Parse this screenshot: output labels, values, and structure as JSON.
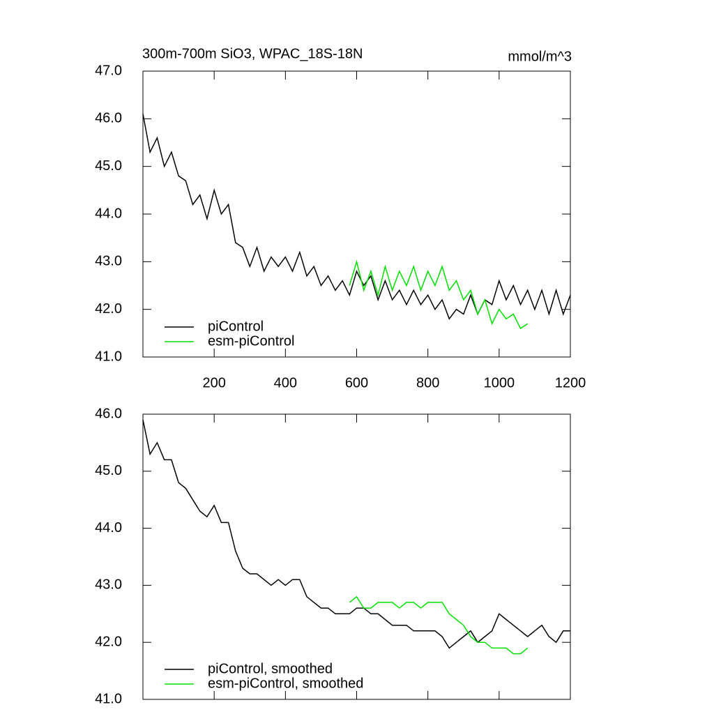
{
  "chart_data": [
    {
      "type": "line",
      "title": "300m-700m SiO3, WPAC_18S-18N",
      "units": "mmol/m^3",
      "xlim": [
        0,
        1200
      ],
      "xticks": [
        200,
        400,
        600,
        800,
        1000,
        1200
      ],
      "ylim": [
        41,
        47
      ],
      "yticks": [
        {
          "value": 41,
          "label": "41.0"
        },
        {
          "value": 42,
          "label": "42.0"
        },
        {
          "value": 43,
          "label": "43.0"
        },
        {
          "value": 44,
          "label": "44.0"
        },
        {
          "value": 45,
          "label": "45.0"
        },
        {
          "value": 46,
          "label": "46.0"
        },
        {
          "value": 47,
          "label": "47.0"
        }
      ],
      "legend": "lower left",
      "series": [
        {
          "name": "piControl",
          "color": "#000000",
          "x": [
            0,
            20,
            40,
            60,
            80,
            100,
            120,
            140,
            160,
            180,
            200,
            220,
            240,
            260,
            280,
            300,
            320,
            340,
            360,
            380,
            400,
            420,
            440,
            460,
            480,
            500,
            520,
            540,
            560,
            580,
            600,
            620,
            640,
            660,
            680,
            700,
            720,
            740,
            760,
            780,
            800,
            820,
            840,
            860,
            880,
            900,
            920,
            940,
            960,
            980,
            1000,
            1020,
            1040,
            1060,
            1080,
            1100,
            1120,
            1140,
            1160,
            1180,
            1200
          ],
          "values": [
            46.1,
            45.3,
            45.6,
            45.0,
            45.3,
            44.8,
            44.7,
            44.2,
            44.4,
            43.9,
            44.5,
            44.0,
            44.2,
            43.4,
            43.3,
            42.9,
            43.3,
            42.8,
            43.1,
            42.9,
            43.1,
            42.8,
            43.2,
            42.7,
            42.9,
            42.5,
            42.7,
            42.4,
            42.6,
            42.3,
            42.8,
            42.5,
            42.7,
            42.2,
            42.6,
            42.2,
            42.4,
            42.1,
            42.4,
            42.1,
            42.3,
            42.0,
            42.2,
            41.8,
            42.0,
            41.9,
            42.3,
            41.9,
            42.2,
            42.1,
            42.6,
            42.2,
            42.5,
            42.1,
            42.4,
            42.0,
            42.4,
            41.9,
            42.4,
            41.9,
            42.3
          ]
        },
        {
          "name": "esm-piControl",
          "color": "#00e000",
          "x": [
            580,
            600,
            620,
            640,
            660,
            680,
            700,
            720,
            740,
            760,
            780,
            800,
            820,
            840,
            860,
            880,
            900,
            920,
            940,
            960,
            980,
            1000,
            1020,
            1040,
            1060,
            1080
          ],
          "values": [
            42.5,
            43.0,
            42.4,
            42.8,
            42.3,
            42.9,
            42.4,
            42.8,
            42.5,
            42.9,
            42.4,
            42.8,
            42.5,
            42.9,
            42.4,
            42.6,
            42.2,
            42.4,
            41.9,
            42.2,
            41.7,
            42.0,
            41.8,
            41.9,
            41.6,
            41.7
          ]
        }
      ]
    },
    {
      "type": "line",
      "xlim": [
        0,
        1200
      ],
      "xticks": [
        200,
        400,
        600,
        800,
        1000,
        1200
      ],
      "ylim": [
        41,
        46
      ],
      "yticks": [
        {
          "value": 41,
          "label": "41.0"
        },
        {
          "value": 42,
          "label": "42.0"
        },
        {
          "value": 43,
          "label": "43.0"
        },
        {
          "value": 44,
          "label": "44.0"
        },
        {
          "value": 45,
          "label": "45.0"
        },
        {
          "value": 46,
          "label": "46.0"
        }
      ],
      "legend": "lower left",
      "series": [
        {
          "name": "piControl, smoothed",
          "color": "#000000",
          "x": [
            0,
            20,
            40,
            60,
            80,
            100,
            120,
            140,
            160,
            180,
            200,
            220,
            240,
            260,
            280,
            300,
            320,
            340,
            360,
            380,
            400,
            420,
            440,
            460,
            480,
            500,
            520,
            540,
            560,
            580,
            600,
            620,
            640,
            660,
            680,
            700,
            720,
            740,
            760,
            780,
            800,
            820,
            840,
            860,
            880,
            900,
            920,
            940,
            960,
            980,
            1000,
            1020,
            1040,
            1060,
            1080,
            1100,
            1120,
            1140,
            1160,
            1180,
            1200
          ],
          "values": [
            45.9,
            45.3,
            45.5,
            45.2,
            45.2,
            44.8,
            44.7,
            44.5,
            44.3,
            44.2,
            44.4,
            44.1,
            44.1,
            43.6,
            43.3,
            43.2,
            43.2,
            43.1,
            43.0,
            43.1,
            43.0,
            43.1,
            43.1,
            42.8,
            42.7,
            42.6,
            42.6,
            42.5,
            42.5,
            42.5,
            42.6,
            42.6,
            42.5,
            42.5,
            42.4,
            42.3,
            42.3,
            42.3,
            42.2,
            42.2,
            42.2,
            42.2,
            42.1,
            41.9,
            42.0,
            42.1,
            42.2,
            42.0,
            42.1,
            42.2,
            42.5,
            42.4,
            42.3,
            42.2,
            42.1,
            42.2,
            42.3,
            42.1,
            42.0,
            42.2,
            42.2
          ]
        },
        {
          "name": "esm-piControl, smoothed",
          "color": "#00e000",
          "x": [
            580,
            600,
            620,
            640,
            660,
            680,
            700,
            720,
            740,
            760,
            780,
            800,
            820,
            840,
            860,
            880,
            900,
            920,
            940,
            960,
            980,
            1000,
            1020,
            1040,
            1060,
            1080
          ],
          "values": [
            42.7,
            42.8,
            42.6,
            42.6,
            42.7,
            42.7,
            42.7,
            42.6,
            42.7,
            42.7,
            42.6,
            42.7,
            42.7,
            42.7,
            42.5,
            42.4,
            42.3,
            42.1,
            42.0,
            42.0,
            41.9,
            41.9,
            41.9,
            41.8,
            41.8,
            41.9
          ]
        }
      ]
    }
  ]
}
